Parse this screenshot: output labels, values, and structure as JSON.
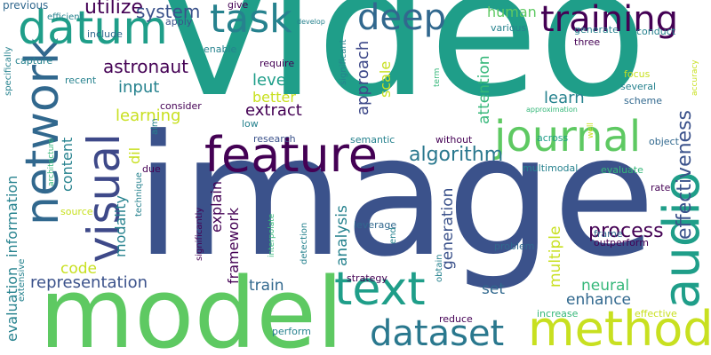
{
  "palette": {
    "dark_purple": "#440154",
    "purple": "#482878",
    "blue": "#3b528b",
    "teal_blue": "#31688e",
    "teal": "#26828e",
    "green_teal": "#1f9e89",
    "green": "#35b779",
    "light_green": "#6ece58",
    "yellow_green": "#b5de2b",
    "yellow": "#fde725"
  },
  "words": [
    {
      "text": "video",
      "color": "#1f9e89"
    },
    {
      "text": "image",
      "color": "#3b528b"
    },
    {
      "text": "model",
      "color": "#5ec962"
    },
    {
      "text": "feature",
      "color": "#440154"
    },
    {
      "text": "network",
      "color": "#31688e"
    },
    {
      "text": "visual",
      "color": "#3e4989"
    },
    {
      "text": "datum",
      "color": "#1f9e89"
    },
    {
      "text": "audio",
      "color": "#1f9e89"
    },
    {
      "text": "text",
      "color": "#1f9e89"
    },
    {
      "text": "method",
      "color": "#c8e020"
    },
    {
      "text": "journal",
      "color": "#5ec962"
    },
    {
      "text": "training",
      "color": "#440154"
    },
    {
      "text": "task",
      "color": "#26828e"
    },
    {
      "text": "deep",
      "color": "#31688e"
    },
    {
      "text": "dataset",
      "color": "#2a788e"
    },
    {
      "text": "effectiveness",
      "color": "#3b528b"
    },
    {
      "text": "process",
      "color": "#440154"
    },
    {
      "text": "algorithm",
      "color": "#2a788e"
    },
    {
      "text": "utilize",
      "color": "#440154"
    },
    {
      "text": "system",
      "color": "#3b528b"
    },
    {
      "text": "astronaut",
      "color": "#440154"
    },
    {
      "text": "representation",
      "color": "#3b528b"
    },
    {
      "text": "approach",
      "color": "#3e4989"
    },
    {
      "text": "evaluation",
      "color": "#26828e"
    },
    {
      "text": "information",
      "color": "#26828e"
    },
    {
      "text": "human",
      "color": "#5ec962"
    },
    {
      "text": "input",
      "color": "#26828e"
    },
    {
      "text": "level",
      "color": "#1f9e89"
    },
    {
      "text": "better",
      "color": "#c8e020"
    },
    {
      "text": "extract",
      "color": "#440154"
    },
    {
      "text": "learning",
      "color": "#c8e020"
    },
    {
      "text": "scale",
      "color": "#c8e020"
    },
    {
      "text": "attention",
      "color": "#35b779"
    },
    {
      "text": "learn",
      "color": "#26828e"
    },
    {
      "text": "analysis",
      "color": "#26828e"
    },
    {
      "text": "generation",
      "color": "#3b528b"
    },
    {
      "text": "multiple",
      "color": "#c8e020"
    },
    {
      "text": "framework",
      "color": "#440154"
    },
    {
      "text": "explain",
      "color": "#440154"
    },
    {
      "text": "content",
      "color": "#26828e"
    },
    {
      "text": "modality",
      "color": "#26828e"
    },
    {
      "text": "dil",
      "color": "#c8e020"
    },
    {
      "text": "code",
      "color": "#c8e020"
    },
    {
      "text": "train",
      "color": "#31688e"
    },
    {
      "text": "neural",
      "color": "#35b779"
    },
    {
      "text": "enhance",
      "color": "#31688e"
    },
    {
      "text": "set",
      "color": "#31688e"
    },
    {
      "text": "previous",
      "color": "#31688e"
    },
    {
      "text": "efficient",
      "color": "#26828e"
    },
    {
      "text": "apply",
      "color": "#3b528b"
    },
    {
      "text": "give",
      "color": "#440154"
    },
    {
      "text": "develop",
      "color": "#26828e"
    },
    {
      "text": "include",
      "color": "#31688e"
    },
    {
      "text": "specifically",
      "color": "#26828e"
    },
    {
      "text": "capture",
      "color": "#26828e"
    },
    {
      "text": "recent",
      "color": "#26828e"
    },
    {
      "text": "enable",
      "color": "#26828e"
    },
    {
      "text": "require",
      "color": "#440154"
    },
    {
      "text": "consider",
      "color": "#440154"
    },
    {
      "text": "aim",
      "color": "#26828e"
    },
    {
      "text": "low",
      "color": "#26828e"
    },
    {
      "text": "research",
      "color": "#3b528b"
    },
    {
      "text": "semantic",
      "color": "#26828e"
    },
    {
      "text": "without",
      "color": "#440154"
    },
    {
      "text": "across",
      "color": "#1f9e89"
    },
    {
      "text": "object",
      "color": "#31688e"
    },
    {
      "text": "multimodal",
      "color": "#26828e"
    },
    {
      "text": "evaluate",
      "color": "#35b779"
    },
    {
      "text": "rate",
      "color": "#440154"
    },
    {
      "text": "significant",
      "color": "#26828e"
    },
    {
      "text": "various",
      "color": "#26828e"
    },
    {
      "text": "generate",
      "color": "#26828e"
    },
    {
      "text": "conduct",
      "color": "#26828e"
    },
    {
      "text": "three",
      "color": "#440154"
    },
    {
      "text": "term",
      "color": "#35b779"
    },
    {
      "text": "focus",
      "color": "#c8e020"
    },
    {
      "text": "several",
      "color": "#26828e"
    },
    {
      "text": "accuracy",
      "color": "#c8e020"
    },
    {
      "text": "scheme",
      "color": "#31688e"
    },
    {
      "text": "approximation",
      "color": "#35b779"
    },
    {
      "text": "well",
      "color": "#c8e020"
    },
    {
      "text": "due",
      "color": "#440154"
    },
    {
      "text": "technique",
      "color": "#26828e"
    },
    {
      "text": "architecture",
      "color": "#35b779"
    },
    {
      "text": "extensive",
      "color": "#26828e"
    },
    {
      "text": "source",
      "color": "#c8e020"
    },
    {
      "text": "significantly",
      "color": "#440154"
    },
    {
      "text": "interpolate",
      "color": "#35b779"
    },
    {
      "text": "detection",
      "color": "#26828e"
    },
    {
      "text": "leverage",
      "color": "#31688e"
    },
    {
      "text": "end",
      "color": "#26828e"
    },
    {
      "text": "obtain",
      "color": "#26828e"
    },
    {
      "text": "frame",
      "color": "#31688e"
    },
    {
      "text": "outperform",
      "color": "#440154"
    },
    {
      "text": "problem",
      "color": "#31688e"
    },
    {
      "text": "strategy",
      "color": "#440154"
    },
    {
      "text": "reduce",
      "color": "#440154"
    },
    {
      "text": "increase",
      "color": "#35b779"
    },
    {
      "text": "effective",
      "color": "#c8e020"
    },
    {
      "text": "perform",
      "color": "#26828e"
    }
  ]
}
